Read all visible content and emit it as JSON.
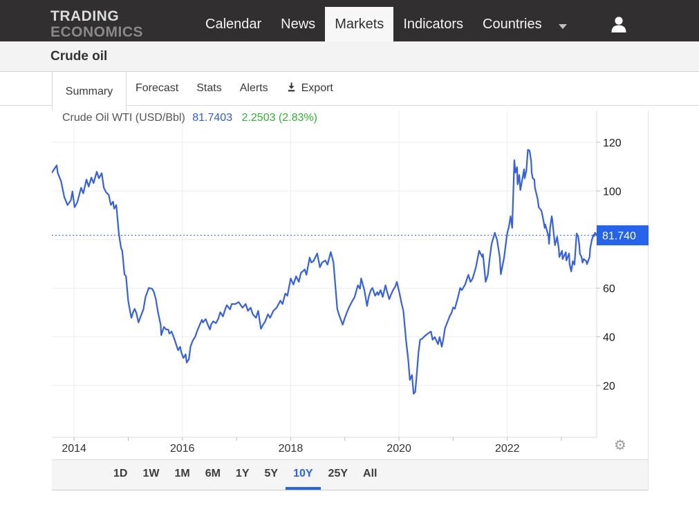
{
  "navbar": {
    "logo_line1": "TRADING",
    "logo_line2": "ECONOMICS",
    "items": [
      {
        "label": "Calendar",
        "active": false
      },
      {
        "label": "News",
        "active": false
      },
      {
        "label": "Markets",
        "active": true
      },
      {
        "label": "Indicators",
        "active": false
      },
      {
        "label": "Countries",
        "active": false
      }
    ]
  },
  "page": {
    "title": "Crude oil"
  },
  "tabs": {
    "active": "Summary",
    "items": [
      {
        "label": "Summary"
      },
      {
        "label": "Forecast"
      },
      {
        "label": "Stats"
      },
      {
        "label": "Alerts"
      },
      {
        "label": "Export"
      }
    ]
  },
  "chart_header": {
    "instrument": "Crude Oil WTI (USD/Bbl)",
    "price": "81.7403",
    "change": "2.2503 (2.83%)"
  },
  "range_bar": {
    "active": "10Y",
    "items": [
      "1D",
      "1W",
      "1M",
      "6M",
      "1Y",
      "5Y",
      "10Y",
      "25Y",
      "All"
    ]
  },
  "icons": {
    "user": "person-icon",
    "nav_caret": "chevron-down-icon",
    "export": "download-icon",
    "settings": "settings-icon"
  },
  "colors": {
    "navbar_bg": "#322f30",
    "line_blue": "#3360e4",
    "badge_blue": "#2563eb",
    "price_blue": "#2e5bea",
    "change_green": "#2db52d",
    "grid": "#ededed",
    "axis": "#d9d9d9"
  },
  "chart_data": {
    "type": "line",
    "title": "Crude Oil WTI (USD/Bbl)",
    "current_value": 81.7403,
    "current_label": "81.740",
    "x_range": [
      2013.59,
      2023.65
    ],
    "y_gridlines": [
      20,
      40,
      60,
      80,
      100,
      120
    ],
    "y_labels": [
      20,
      40,
      60,
      100,
      120
    ],
    "x_labels": [
      2014,
      2016,
      2018,
      2020,
      2022
    ],
    "x_ticks": [
      2014,
      2015,
      2016,
      2017,
      2018,
      2019,
      2020,
      2021,
      2022,
      2023
    ],
    "legend": "none",
    "grid": true,
    "series": [
      {
        "name": "Crude Oil WTI (USD/Bbl)",
        "points": [
          [
            2013.59,
            107.5
          ],
          [
            2013.68,
            110.5
          ],
          [
            2013.7,
            107.3
          ],
          [
            2013.76,
            104.0
          ],
          [
            2013.82,
            97.5
          ],
          [
            2013.88,
            94.2
          ],
          [
            2013.94,
            96.1
          ],
          [
            2013.97,
            99.8
          ],
          [
            2014.01,
            93.3
          ],
          [
            2014.06,
            95.3
          ],
          [
            2014.13,
            101.3
          ],
          [
            2014.17,
            99.0
          ],
          [
            2014.23,
            104.7
          ],
          [
            2014.27,
            101.8
          ],
          [
            2014.32,
            105.5
          ],
          [
            2014.36,
            103.2
          ],
          [
            2014.42,
            107.9
          ],
          [
            2014.46,
            105.2
          ],
          [
            2014.51,
            107.3
          ],
          [
            2014.55,
            101.3
          ],
          [
            2014.59,
            99.5
          ],
          [
            2014.64,
            98.4
          ],
          [
            2014.68,
            94.2
          ],
          [
            2014.72,
            95.6
          ],
          [
            2014.74,
            92.7
          ],
          [
            2014.78,
            94.2
          ],
          [
            2014.83,
            81.9
          ],
          [
            2014.87,
            76.3
          ],
          [
            2014.89,
            75.4
          ],
          [
            2014.93,
            65.7
          ],
          [
            2014.96,
            64.9
          ],
          [
            2015.0,
            54.9
          ],
          [
            2015.04,
            49.8
          ],
          [
            2015.06,
            47.8
          ],
          [
            2015.09,
            50.1
          ],
          [
            2015.12,
            51.5
          ],
          [
            2015.15,
            49.8
          ],
          [
            2015.19,
            45.9
          ],
          [
            2015.23,
            48.4
          ],
          [
            2015.28,
            51.3
          ],
          [
            2015.32,
            56.4
          ],
          [
            2015.38,
            60.1
          ],
          [
            2015.44,
            59.8
          ],
          [
            2015.47,
            58.6
          ],
          [
            2015.51,
            55.5
          ],
          [
            2015.55,
            50.1
          ],
          [
            2015.6,
            45.0
          ],
          [
            2015.61,
            40.7
          ],
          [
            2015.66,
            44.1
          ],
          [
            2015.7,
            43.0
          ],
          [
            2015.74,
            43.0
          ],
          [
            2015.76,
            41.3
          ],
          [
            2015.8,
            42.2
          ],
          [
            2015.85,
            39.3
          ],
          [
            2015.89,
            36.5
          ],
          [
            2015.92,
            34.5
          ],
          [
            2015.96,
            35.9
          ],
          [
            2015.98,
            33.6
          ],
          [
            2016.02,
            31.3
          ],
          [
            2016.06,
            32.8
          ],
          [
            2016.08,
            29.4
          ],
          [
            2016.12,
            30.8
          ],
          [
            2016.15,
            35.9
          ],
          [
            2016.19,
            38.4
          ],
          [
            2016.24,
            40.2
          ],
          [
            2016.27,
            42.2
          ],
          [
            2016.31,
            44.4
          ],
          [
            2016.36,
            47.0
          ],
          [
            2016.38,
            45.9
          ],
          [
            2016.43,
            47.3
          ],
          [
            2016.47,
            45.0
          ],
          [
            2016.51,
            43.0
          ],
          [
            2016.53,
            45.0
          ],
          [
            2016.57,
            46.4
          ],
          [
            2016.62,
            45.6
          ],
          [
            2016.66,
            47.3
          ],
          [
            2016.7,
            50.1
          ],
          [
            2016.75,
            48.4
          ],
          [
            2016.79,
            51.3
          ],
          [
            2016.82,
            53.0
          ],
          [
            2016.88,
            51.3
          ],
          [
            2016.91,
            53.5
          ],
          [
            2016.98,
            53.5
          ],
          [
            2017.04,
            54.3
          ],
          [
            2017.11,
            52.0
          ],
          [
            2017.17,
            53.5
          ],
          [
            2017.21,
            50.7
          ],
          [
            2017.26,
            52.0
          ],
          [
            2017.3,
            49.3
          ],
          [
            2017.36,
            47.8
          ],
          [
            2017.4,
            50.7
          ],
          [
            2017.45,
            43.3
          ],
          [
            2017.49,
            45.0
          ],
          [
            2017.53,
            46.4
          ],
          [
            2017.58,
            49.3
          ],
          [
            2017.62,
            47.8
          ],
          [
            2017.68,
            50.7
          ],
          [
            2017.74,
            52.0
          ],
          [
            2017.81,
            54.9
          ],
          [
            2017.85,
            53.5
          ],
          [
            2017.9,
            57.8
          ],
          [
            2017.94,
            56.9
          ],
          [
            2018.0,
            64.0
          ],
          [
            2018.05,
            61.5
          ],
          [
            2018.1,
            64.9
          ],
          [
            2018.15,
            62.6
          ],
          [
            2018.19,
            66.3
          ],
          [
            2018.26,
            67.7
          ],
          [
            2018.29,
            65.5
          ],
          [
            2018.35,
            72.6
          ],
          [
            2018.38,
            70.6
          ],
          [
            2018.42,
            71.1
          ],
          [
            2018.49,
            74.3
          ],
          [
            2018.54,
            68.6
          ],
          [
            2018.58,
            70.6
          ],
          [
            2018.64,
            71.4
          ],
          [
            2018.68,
            69.7
          ],
          [
            2018.74,
            74.9
          ],
          [
            2018.79,
            70.6
          ],
          [
            2018.86,
            51.5
          ],
          [
            2018.89,
            49.3
          ],
          [
            2018.96,
            45.0
          ],
          [
            2019.0,
            47.8
          ],
          [
            2019.05,
            50.7
          ],
          [
            2019.09,
            52.7
          ],
          [
            2019.13,
            54.4
          ],
          [
            2019.18,
            56.4
          ],
          [
            2019.24,
            61.2
          ],
          [
            2019.28,
            59.8
          ],
          [
            2019.3,
            64.0
          ],
          [
            2019.36,
            59.2
          ],
          [
            2019.41,
            52.7
          ],
          [
            2019.44,
            56.4
          ],
          [
            2019.48,
            59.2
          ],
          [
            2019.51,
            60.1
          ],
          [
            2019.56,
            56.9
          ],
          [
            2019.6,
            58.4
          ],
          [
            2019.62,
            57.2
          ],
          [
            2019.66,
            59.2
          ],
          [
            2019.7,
            56.4
          ],
          [
            2019.75,
            61.2
          ],
          [
            2019.79,
            57.8
          ],
          [
            2019.82,
            55.5
          ],
          [
            2019.85,
            57.2
          ],
          [
            2019.89,
            59.2
          ],
          [
            2019.93,
            60.6
          ],
          [
            2019.96,
            62.6
          ],
          [
            2020.01,
            57.8
          ],
          [
            2020.05,
            53.5
          ],
          [
            2020.08,
            50.7
          ],
          [
            2020.13,
            38.5
          ],
          [
            2020.17,
            30.8
          ],
          [
            2020.2,
            22.3
          ],
          [
            2020.24,
            24.3
          ],
          [
            2020.27,
            16.6
          ],
          [
            2020.3,
            17.4
          ],
          [
            2020.33,
            25.1
          ],
          [
            2020.36,
            33.6
          ],
          [
            2020.39,
            38.8
          ],
          [
            2020.43,
            39.3
          ],
          [
            2020.47,
            40.2
          ],
          [
            2020.53,
            41.3
          ],
          [
            2020.59,
            42.2
          ],
          [
            2020.62,
            38.8
          ],
          [
            2020.66,
            39.9
          ],
          [
            2020.72,
            37.0
          ],
          [
            2020.75,
            39.9
          ],
          [
            2020.79,
            35.9
          ],
          [
            2020.82,
            39.3
          ],
          [
            2020.85,
            43.6
          ],
          [
            2020.9,
            46.4
          ],
          [
            2020.94,
            48.7
          ],
          [
            2020.97,
            49.8
          ],
          [
            2021.0,
            52.1
          ],
          [
            2021.03,
            51.5
          ],
          [
            2021.09,
            56.4
          ],
          [
            2021.13,
            60.1
          ],
          [
            2021.16,
            59.2
          ],
          [
            2021.22,
            61.5
          ],
          [
            2021.28,
            65.5
          ],
          [
            2021.32,
            62.6
          ],
          [
            2021.36,
            64.0
          ],
          [
            2021.42,
            68.6
          ],
          [
            2021.48,
            75.4
          ],
          [
            2021.54,
            72.8
          ],
          [
            2021.55,
            74.0
          ],
          [
            2021.6,
            62.6
          ],
          [
            2021.64,
            65.5
          ],
          [
            2021.67,
            71.4
          ],
          [
            2021.71,
            78.2
          ],
          [
            2021.77,
            82.8
          ],
          [
            2021.81,
            79.9
          ],
          [
            2021.86,
            72.8
          ],
          [
            2021.88,
            65.7
          ],
          [
            2021.94,
            72.6
          ],
          [
            2021.99,
            81.4
          ],
          [
            2022.0,
            82.8
          ],
          [
            2022.03,
            85.3
          ],
          [
            2022.06,
            89.6
          ],
          [
            2022.09,
            84.8
          ],
          [
            2022.13,
            112.6
          ],
          [
            2022.15,
            107.5
          ],
          [
            2022.18,
            109.8
          ],
          [
            2022.19,
            102.7
          ],
          [
            2022.22,
            106.6
          ],
          [
            2022.24,
            100.4
          ],
          [
            2022.26,
            102.7
          ],
          [
            2022.31,
            108.9
          ],
          [
            2022.32,
            105.2
          ],
          [
            2022.35,
            108.1
          ],
          [
            2022.38,
            116.9
          ],
          [
            2022.41,
            116.6
          ],
          [
            2022.44,
            112.4
          ],
          [
            2022.45,
            107.5
          ],
          [
            2022.47,
            105.2
          ],
          [
            2022.5,
            104.7
          ],
          [
            2022.51,
            101.3
          ],
          [
            2022.56,
            96.7
          ],
          [
            2022.58,
            93.3
          ],
          [
            2022.63,
            91.9
          ],
          [
            2022.67,
            87.6
          ],
          [
            2022.69,
            84.8
          ],
          [
            2022.7,
            86.2
          ],
          [
            2022.76,
            81.4
          ],
          [
            2022.77,
            78.2
          ],
          [
            2022.79,
            84.8
          ],
          [
            2022.82,
            89.6
          ],
          [
            2022.83,
            88.2
          ],
          [
            2022.86,
            81.9
          ],
          [
            2022.88,
            77.7
          ],
          [
            2022.92,
            81.1
          ],
          [
            2022.95,
            76.3
          ],
          [
            2022.96,
            72.8
          ],
          [
            2023.01,
            75.4
          ],
          [
            2023.02,
            72.0
          ],
          [
            2023.08,
            74.8
          ],
          [
            2023.09,
            71.4
          ],
          [
            2023.14,
            74.3
          ],
          [
            2023.15,
            69.9
          ],
          [
            2023.18,
            66.9
          ],
          [
            2023.21,
            71.1
          ],
          [
            2023.24,
            69.7
          ],
          [
            2023.28,
            82.5
          ],
          [
            2023.31,
            81.1
          ],
          [
            2023.33,
            77.7
          ],
          [
            2023.34,
            74.3
          ],
          [
            2023.37,
            72.8
          ],
          [
            2023.39,
            70.5
          ],
          [
            2023.41,
            72.0
          ],
          [
            2023.46,
            71.1
          ],
          [
            2023.47,
            69.9
          ],
          [
            2023.52,
            72.8
          ],
          [
            2023.53,
            76.3
          ],
          [
            2023.56,
            79.9
          ],
          [
            2023.59,
            81.9
          ],
          [
            2023.6,
            81.4
          ],
          [
            2023.62,
            82.8
          ],
          [
            2023.65,
            81.74
          ]
        ]
      }
    ]
  }
}
